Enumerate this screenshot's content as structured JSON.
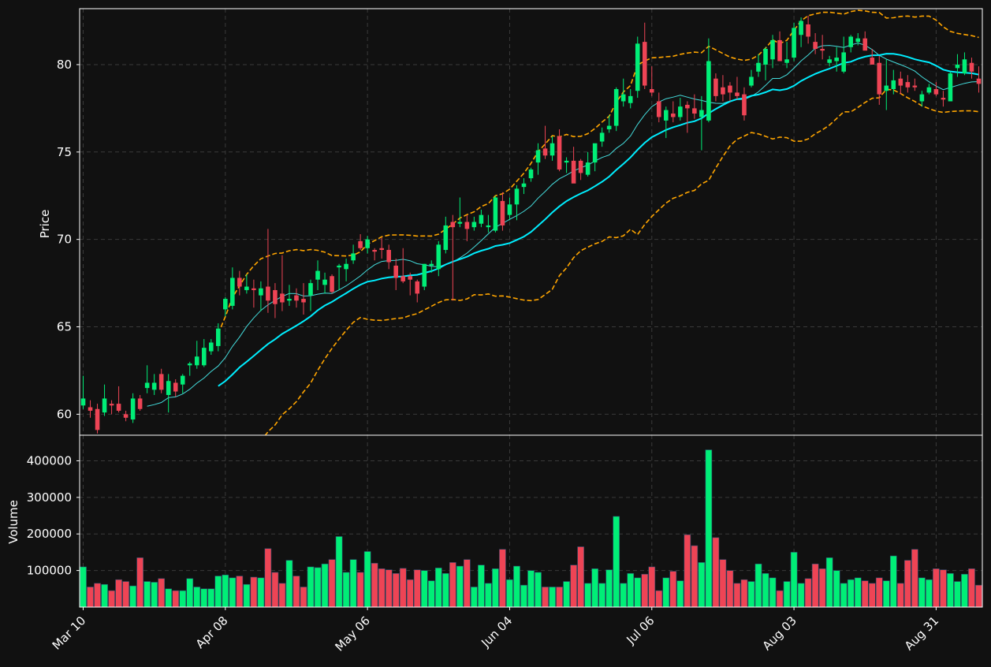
{
  "colors": {
    "background": "#111111",
    "up": "#00ee77",
    "down": "#ee4455",
    "ma_fast": "#44dddd",
    "ma_slow": "#00eeff",
    "bands": "#ffa500",
    "grid": "#3a3a3a",
    "axes": "#ffffff"
  },
  "chart_data": {
    "type": "candlestick",
    "price_panel": {
      "ylabel": "Price",
      "ylim": [
        58.8,
        83.2
      ],
      "yticks": [
        60,
        65,
        70,
        75,
        80
      ],
      "grid": true
    },
    "volume_panel": {
      "ylabel": "Volume",
      "ylim": [
        0,
        470000
      ],
      "yticks": [
        100000,
        200000,
        300000,
        400000
      ],
      "grid": true
    },
    "xticks": [
      {
        "label": "Mar 10",
        "index": 0
      },
      {
        "label": "Apr 08",
        "index": 20
      },
      {
        "label": "May 06",
        "index": 40
      },
      {
        "label": "Jun 04",
        "index": 60
      },
      {
        "label": "Jul 06",
        "index": 80
      },
      {
        "label": "Aug 03",
        "index": 100
      },
      {
        "label": "Aug 31",
        "index": 120
      }
    ],
    "ma_fast_window": 10,
    "ma_slow_window": 20,
    "band_window": 20,
    "band_std": 2,
    "ohlcv": [
      [
        60.5,
        62.2,
        60.3,
        60.9,
        110000
      ],
      [
        60.4,
        60.8,
        59.8,
        60.2,
        55000
      ],
      [
        60.3,
        60.6,
        58.9,
        59.1,
        65000
      ],
      [
        60.1,
        61.7,
        59.9,
        60.9,
        62000
      ],
      [
        60.6,
        60.8,
        60.0,
        60.5,
        45000
      ],
      [
        60.6,
        61.6,
        60.1,
        60.2,
        75000
      ],
      [
        60.0,
        60.2,
        59.6,
        59.8,
        70000
      ],
      [
        59.7,
        61.2,
        59.5,
        60.9,
        58000
      ],
      [
        60.9,
        61.1,
        60.2,
        60.3,
        135000
      ],
      [
        61.5,
        62.8,
        61.2,
        61.8,
        70000
      ],
      [
        61.4,
        62.3,
        61.1,
        61.8,
        68000
      ],
      [
        62.3,
        62.6,
        61.2,
        61.4,
        78000
      ],
      [
        61.1,
        62.3,
        60.1,
        61.9,
        50000
      ],
      [
        61.8,
        62.0,
        61.0,
        61.3,
        45000
      ],
      [
        61.7,
        62.3,
        61.2,
        62.2,
        45000
      ],
      [
        62.8,
        63.0,
        62.2,
        62.9,
        78000
      ],
      [
        62.8,
        64.2,
        62.6,
        63.3,
        55000
      ],
      [
        62.8,
        64.3,
        62.7,
        63.8,
        50000
      ],
      [
        63.6,
        64.3,
        63.4,
        64.1,
        50000
      ],
      [
        63.9,
        65.2,
        63.6,
        64.9,
        85000
      ],
      [
        66.0,
        66.7,
        65.6,
        66.6,
        88000
      ],
      [
        66.2,
        68.4,
        66.0,
        67.8,
        80000
      ],
      [
        67.8,
        68.2,
        66.8,
        67.3,
        85000
      ],
      [
        67.1,
        68.0,
        66.9,
        67.3,
        62000
      ],
      [
        67.2,
        67.7,
        66.1,
        67.1,
        82000
      ],
      [
        66.8,
        67.6,
        65.9,
        67.2,
        80000
      ],
      [
        67.3,
        70.6,
        65.8,
        66.5,
        160000
      ],
      [
        67.1,
        67.5,
        65.5,
        66.3,
        95000
      ],
      [
        66.9,
        69.1,
        65.9,
        66.4,
        65000
      ],
      [
        66.5,
        67.4,
        66.2,
        66.6,
        128000
      ],
      [
        66.8,
        67.2,
        66.1,
        66.5,
        85000
      ],
      [
        66.6,
        67.5,
        65.7,
        66.4,
        55000
      ],
      [
        66.8,
        67.7,
        65.9,
        67.5,
        110000
      ],
      [
        67.7,
        68.8,
        67.1,
        68.2,
        108000
      ],
      [
        67.4,
        68.1,
        66.9,
        67.7,
        118000
      ],
      [
        67.9,
        68.0,
        66.9,
        67.0,
        130000
      ],
      [
        68.4,
        68.6,
        67.1,
        68.5,
        193000
      ],
      [
        68.3,
        68.9,
        67.6,
        68.6,
        95000
      ],
      [
        68.8,
        69.7,
        68.6,
        69.2,
        130000
      ],
      [
        69.9,
        70.3,
        69.4,
        69.5,
        95000
      ],
      [
        69.5,
        70.2,
        69.2,
        70.0,
        152000
      ],
      [
        69.4,
        69.5,
        68.8,
        69.3,
        120000
      ],
      [
        69.5,
        70.1,
        68.9,
        69.4,
        105000
      ],
      [
        69.4,
        69.7,
        68.3,
        68.7,
        102000
      ],
      [
        68.5,
        68.9,
        67.1,
        67.8,
        92000
      ],
      [
        67.9,
        69.5,
        67.5,
        67.6,
        106000
      ],
      [
        67.9,
        68.1,
        66.8,
        67.7,
        75000
      ],
      [
        67.6,
        67.7,
        66.4,
        66.9,
        102000
      ],
      [
        67.3,
        68.6,
        67.1,
        68.6,
        100000
      ],
      [
        68.5,
        68.8,
        68.1,
        68.6,
        72000
      ],
      [
        68.3,
        69.9,
        67.9,
        69.7,
        107000
      ],
      [
        69.4,
        71.3,
        69.2,
        70.8,
        92000
      ],
      [
        71.0,
        71.4,
        66.5,
        70.7,
        122000
      ],
      [
        70.9,
        72.4,
        70.7,
        71.0,
        112000
      ],
      [
        71.0,
        71.4,
        69.9,
        70.6,
        130000
      ],
      [
        70.7,
        71.3,
        70.5,
        71.0,
        55000
      ],
      [
        70.9,
        71.7,
        70.7,
        71.4,
        115000
      ],
      [
        70.7,
        71.4,
        70.4,
        70.8,
        65000
      ],
      [
        70.5,
        72.5,
        70.4,
        72.4,
        105000
      ],
      [
        72.2,
        72.7,
        70.5,
        70.8,
        158000
      ],
      [
        71.4,
        72.4,
        71.1,
        72.0,
        75000
      ],
      [
        72.0,
        73.1,
        71.1,
        72.9,
        112000
      ],
      [
        73.0,
        73.5,
        72.6,
        73.2,
        60000
      ],
      [
        73.5,
        74.1,
        73.3,
        74.0,
        100000
      ],
      [
        74.4,
        75.5,
        73.7,
        75.1,
        95000
      ],
      [
        75.2,
        76.5,
        74.6,
        74.8,
        55000
      ],
      [
        74.8,
        75.9,
        74.5,
        75.5,
        55000
      ],
      [
        75.9,
        76.3,
        73.9,
        74.0,
        55000
      ],
      [
        74.4,
        74.7,
        73.8,
        74.5,
        70000
      ],
      [
        74.5,
        75.3,
        74.2,
        73.2,
        115000
      ],
      [
        74.5,
        74.6,
        73.4,
        73.8,
        165000
      ],
      [
        73.7,
        75.0,
        73.6,
        74.4,
        65000
      ],
      [
        74.4,
        74.7,
        73.9,
        75.5,
        105000
      ],
      [
        75.6,
        76.4,
        75.3,
        76.1,
        65000
      ],
      [
        76.3,
        77.1,
        76.1,
        76.5,
        102000
      ],
      [
        76.5,
        78.7,
        76.2,
        78.6,
        248000
      ],
      [
        77.9,
        79.2,
        77.6,
        78.3,
        65000
      ],
      [
        77.8,
        78.6,
        77.5,
        78.2,
        92000
      ],
      [
        78.5,
        81.6,
        78.1,
        81.2,
        80000
      ],
      [
        81.3,
        82.4,
        78.6,
        78.8,
        90000
      ],
      [
        78.6,
        79.9,
        78.2,
        78.4,
        110000
      ],
      [
        77.9,
        78.4,
        76.7,
        77.0,
        45000
      ],
      [
        76.8,
        77.6,
        75.8,
        77.4,
        80000
      ],
      [
        77.2,
        77.9,
        76.7,
        77.0,
        98000
      ],
      [
        77.0,
        78.1,
        76.8,
        77.6,
        72000
      ],
      [
        77.7,
        77.9,
        76.1,
        77.5,
        198000
      ],
      [
        77.5,
        78.3,
        76.9,
        77.2,
        168000
      ],
      [
        77.0,
        78.2,
        75.1,
        77.4,
        122000
      ],
      [
        76.8,
        81.5,
        76.7,
        80.2,
        430000
      ],
      [
        79.2,
        79.5,
        77.9,
        78.2,
        190000
      ],
      [
        78.7,
        79.4,
        77.9,
        78.3,
        130000
      ],
      [
        78.8,
        79.0,
        77.9,
        78.4,
        100000
      ],
      [
        78.4,
        79.3,
        78.0,
        78.2,
        65000
      ],
      [
        78.3,
        78.7,
        76.8,
        77.1,
        75000
      ],
      [
        78.8,
        79.7,
        78.7,
        79.3,
        70000
      ],
      [
        79.6,
        80.6,
        79.3,
        80.1,
        118000
      ],
      [
        80.0,
        81.0,
        79.1,
        80.9,
        92000
      ],
      [
        80.3,
        81.7,
        79.8,
        81.4,
        80000
      ],
      [
        81.4,
        81.9,
        80.9,
        80.2,
        45000
      ],
      [
        80.1,
        81.3,
        79.8,
        80.3,
        70000
      ],
      [
        80.4,
        82.4,
        80.2,
        82.1,
        150000
      ],
      [
        81.7,
        82.7,
        81.0,
        82.5,
        65000
      ],
      [
        82.3,
        82.8,
        81.2,
        81.6,
        78000
      ],
      [
        81.3,
        81.8,
        80.6,
        80.9,
        118000
      ],
      [
        80.9,
        81.7,
        80.3,
        80.8,
        105000
      ],
      [
        80.1,
        80.5,
        79.9,
        80.3,
        135000
      ],
      [
        80.2,
        81.0,
        79.6,
        80.4,
        100000
      ],
      [
        79.6,
        81.6,
        79.5,
        80.7,
        65000
      ],
      [
        81.0,
        81.7,
        80.7,
        81.6,
        75000
      ],
      [
        81.3,
        81.8,
        81.1,
        81.5,
        80000
      ],
      [
        81.5,
        81.9,
        80.9,
        80.8,
        72000
      ],
      [
        80.4,
        80.9,
        80.0,
        80.0,
        65000
      ],
      [
        80.1,
        80.5,
        77.7,
        78.3,
        80000
      ],
      [
        78.5,
        80.3,
        77.4,
        78.8,
        72000
      ],
      [
        78.6,
        79.7,
        78.3,
        79.1,
        140000
      ],
      [
        79.2,
        79.6,
        78.3,
        78.8,
        65000
      ],
      [
        79.0,
        79.4,
        78.4,
        78.7,
        128000
      ],
      [
        78.8,
        79.2,
        78.5,
        78.7,
        158000
      ],
      [
        77.9,
        78.5,
        77.6,
        78.3,
        80000
      ],
      [
        78.4,
        78.9,
        78.3,
        78.7,
        75000
      ],
      [
        78.6,
        79.0,
        78.2,
        78.3,
        105000
      ],
      [
        78.1,
        78.5,
        77.6,
        78.0,
        102000
      ],
      [
        77.9,
        79.6,
        77.9,
        79.5,
        92000
      ],
      [
        79.8,
        80.6,
        79.3,
        80.0,
        70000
      ],
      [
        79.5,
        80.7,
        79.4,
        80.3,
        90000
      ],
      [
        80.1,
        80.4,
        79.2,
        79.6,
        105000
      ],
      [
        79.2,
        79.9,
        78.4,
        78.9,
        60000
      ]
    ]
  }
}
